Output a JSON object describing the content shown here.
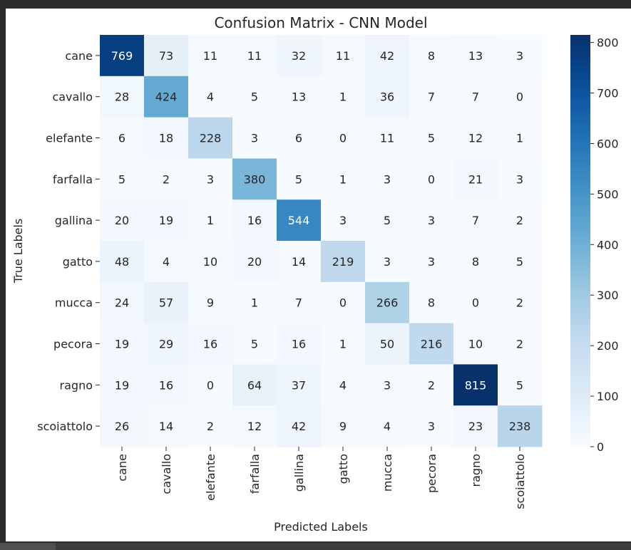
{
  "chart_data": {
    "type": "heatmap",
    "title": "Confusion Matrix - CNN Model",
    "xlabel": "Predicted Labels",
    "ylabel": "True Labels",
    "x_categories": [
      "cane",
      "cavallo",
      "elefante",
      "farfalla",
      "gallina",
      "gatto",
      "mucca",
      "pecora",
      "ragno",
      "scoiattolo"
    ],
    "y_categories": [
      "cane",
      "cavallo",
      "elefante",
      "farfalla",
      "gallina",
      "gatto",
      "mucca",
      "pecora",
      "ragno",
      "scoiattolo"
    ],
    "values": [
      [
        769,
        73,
        11,
        11,
        32,
        11,
        42,
        8,
        13,
        3
      ],
      [
        28,
        424,
        4,
        5,
        13,
        1,
        36,
        7,
        7,
        0
      ],
      [
        6,
        18,
        228,
        3,
        6,
        0,
        11,
        5,
        12,
        1
      ],
      [
        5,
        2,
        3,
        380,
        5,
        1,
        3,
        0,
        21,
        3
      ],
      [
        20,
        19,
        1,
        16,
        544,
        3,
        5,
        3,
        7,
        2
      ],
      [
        48,
        4,
        10,
        20,
        14,
        219,
        3,
        3,
        8,
        5
      ],
      [
        24,
        57,
        9,
        1,
        7,
        0,
        266,
        8,
        0,
        2
      ],
      [
        19,
        29,
        16,
        5,
        16,
        1,
        50,
        216,
        10,
        2
      ],
      [
        19,
        16,
        0,
        64,
        37,
        4,
        3,
        2,
        815,
        5
      ],
      [
        26,
        14,
        2,
        12,
        42,
        9,
        4,
        3,
        23,
        238
      ]
    ],
    "colormap": "Blues",
    "colorbar": {
      "min": 0,
      "max": 815,
      "ticks": [
        0,
        100,
        200,
        300,
        400,
        500,
        600,
        700,
        800
      ]
    },
    "annotations": true
  }
}
